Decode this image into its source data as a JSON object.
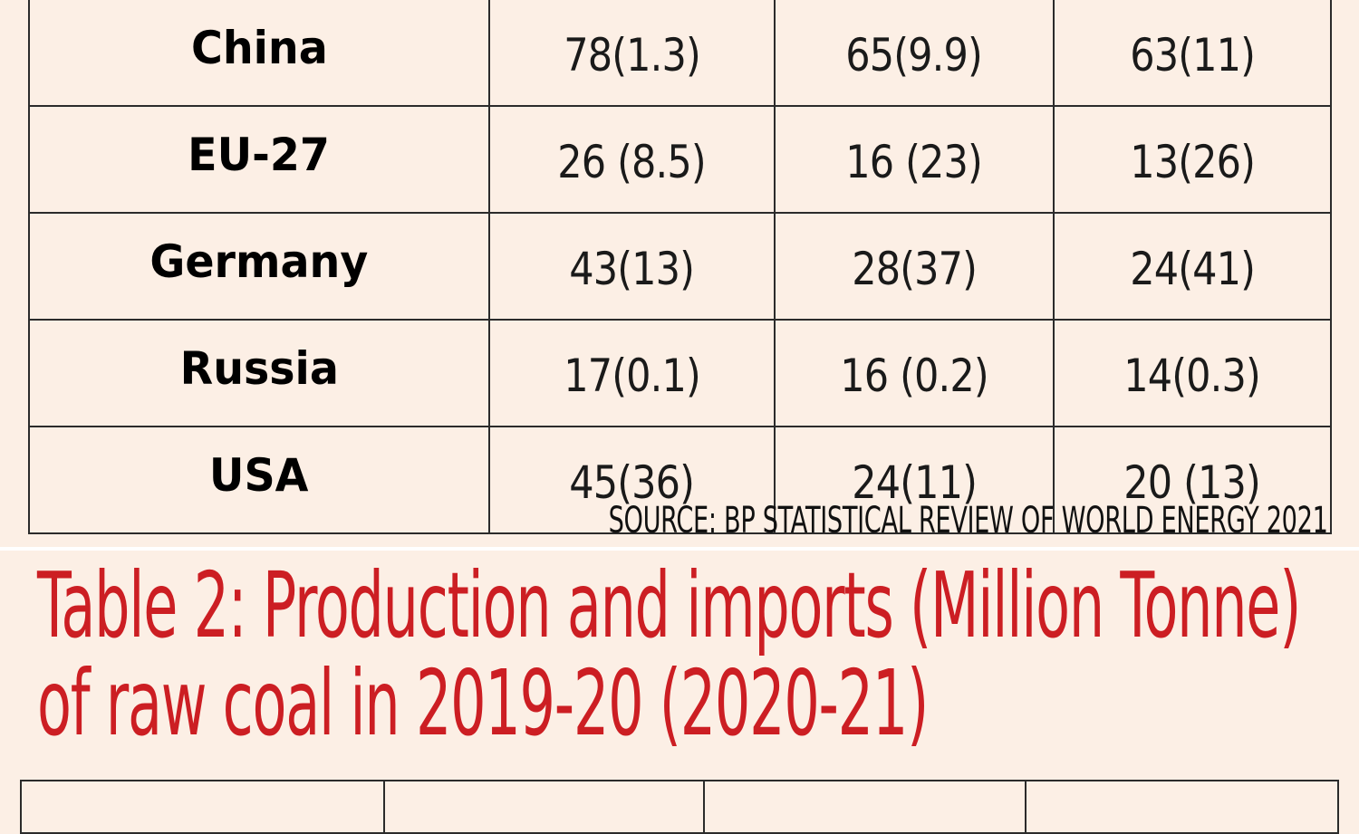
{
  "table1": {
    "rows": [
      {
        "country": "China",
        "c1": "78(1.3)",
        "c2": "65(9.9)",
        "c3": "63(11)"
      },
      {
        "country": "EU-27",
        "c1": "26 (8.5)",
        "c2": "16 (23)",
        "c3": "13(26)"
      },
      {
        "country": "Germany",
        "c1": "43(13)",
        "c2": "28(37)",
        "c3": "24(41)"
      },
      {
        "country": "Russia",
        "c1": "17(0.1)",
        "c2": "16 (0.2)",
        "c3": "14(0.3)"
      },
      {
        "country": "USA",
        "c1": "45(36)",
        "c2": "24(11)",
        "c3": "20 (13)"
      }
    ],
    "source": "SOURCE: BP STATISTICAL REVIEW OF WORLD ENERGY 2021"
  },
  "table2": {
    "title_line1": "Table 2: Production and imports (Million Tonne)",
    "title_line2": "of raw coal in 2019-20 (2020-21)"
  },
  "colors": {
    "background": "#fcefe5",
    "title": "#cc1e23",
    "border": "#2b2b2b"
  }
}
